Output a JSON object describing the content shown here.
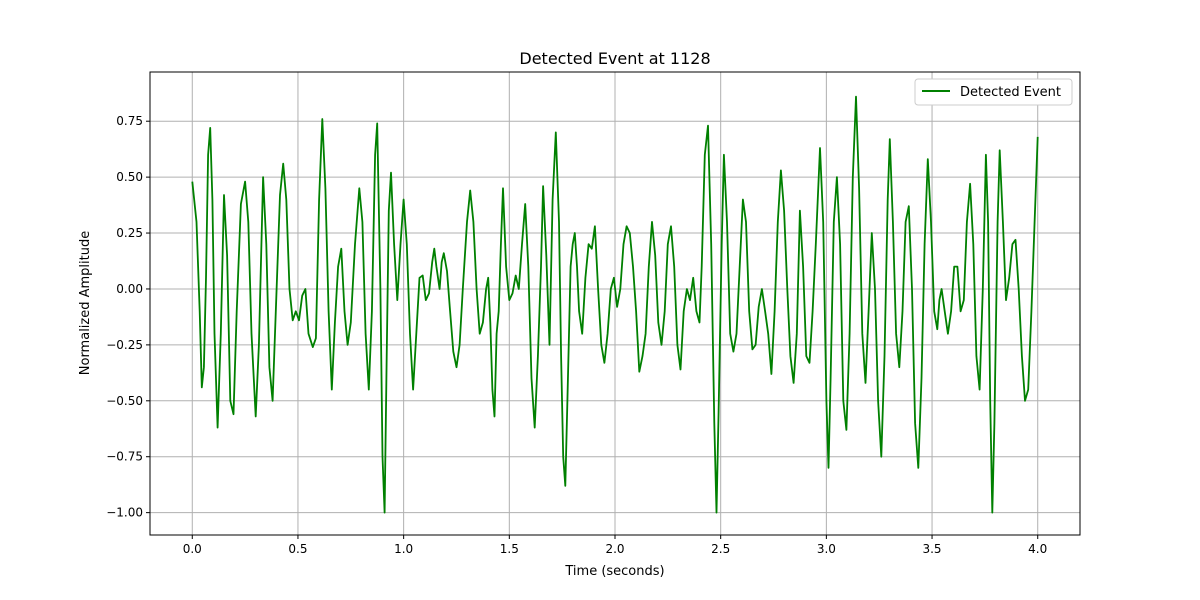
{
  "chart_data": {
    "type": "line",
    "title": "Detected Event at 1128",
    "xlabel": "Time (seconds)",
    "ylabel": "Normalized Amplitude",
    "xlim": [
      -0.2,
      4.2
    ],
    "ylim": [
      -1.1,
      0.97
    ],
    "x_ticks": [
      0.0,
      0.5,
      1.0,
      1.5,
      2.0,
      2.5,
      3.0,
      3.5,
      4.0
    ],
    "x_tick_labels": [
      "0.0",
      "0.5",
      "1.0",
      "1.5",
      "2.0",
      "2.5",
      "3.0",
      "3.5",
      "4.0"
    ],
    "y_ticks": [
      -1.0,
      -0.75,
      -0.5,
      -0.25,
      0.0,
      0.25,
      0.5,
      0.75
    ],
    "y_tick_labels": [
      "−1.00",
      "−0.75",
      "−0.50",
      "−0.25",
      "0.00",
      "0.25",
      "0.50",
      "0.75"
    ],
    "grid": true,
    "legend_position": "top-right",
    "series": [
      {
        "name": "Detected Event",
        "color": "#008000",
        "points": [
          [
            0.0,
            0.48
          ],
          [
            0.02,
            0.3
          ],
          [
            0.035,
            -0.1
          ],
          [
            0.045,
            -0.44
          ],
          [
            0.055,
            -0.35
          ],
          [
            0.065,
            0.05
          ],
          [
            0.075,
            0.6
          ],
          [
            0.085,
            0.72
          ],
          [
            0.095,
            0.4
          ],
          [
            0.105,
            -0.2
          ],
          [
            0.12,
            -0.62
          ],
          [
            0.135,
            -0.2
          ],
          [
            0.15,
            0.42
          ],
          [
            0.165,
            0.15
          ],
          [
            0.18,
            -0.5
          ],
          [
            0.195,
            -0.56
          ],
          [
            0.21,
            -0.1
          ],
          [
            0.23,
            0.38
          ],
          [
            0.25,
            0.48
          ],
          [
            0.265,
            0.3
          ],
          [
            0.28,
            -0.2
          ],
          [
            0.3,
            -0.57
          ],
          [
            0.315,
            -0.25
          ],
          [
            0.335,
            0.5
          ],
          [
            0.35,
            0.2
          ],
          [
            0.365,
            -0.35
          ],
          [
            0.38,
            -0.5
          ],
          [
            0.395,
            -0.1
          ],
          [
            0.415,
            0.42
          ],
          [
            0.43,
            0.56
          ],
          [
            0.445,
            0.4
          ],
          [
            0.46,
            0.0
          ],
          [
            0.475,
            -0.14
          ],
          [
            0.49,
            -0.1
          ],
          [
            0.505,
            -0.14
          ],
          [
            0.52,
            -0.03
          ],
          [
            0.535,
            0.0
          ],
          [
            0.55,
            -0.2
          ],
          [
            0.57,
            -0.26
          ],
          [
            0.585,
            -0.22
          ],
          [
            0.6,
            0.4
          ],
          [
            0.615,
            0.76
          ],
          [
            0.63,
            0.45
          ],
          [
            0.645,
            -0.1
          ],
          [
            0.66,
            -0.45
          ],
          [
            0.675,
            -0.15
          ],
          [
            0.69,
            0.1
          ],
          [
            0.705,
            0.18
          ],
          [
            0.72,
            -0.1
          ],
          [
            0.735,
            -0.25
          ],
          [
            0.75,
            -0.15
          ],
          [
            0.77,
            0.2
          ],
          [
            0.79,
            0.45
          ],
          [
            0.805,
            0.3
          ],
          [
            0.82,
            -0.2
          ],
          [
            0.835,
            -0.45
          ],
          [
            0.85,
            -0.1
          ],
          [
            0.865,
            0.6
          ],
          [
            0.875,
            0.74
          ],
          [
            0.89,
            0.0
          ],
          [
            0.9,
            -0.75
          ],
          [
            0.91,
            -1.0
          ],
          [
            0.92,
            -0.3
          ],
          [
            0.93,
            0.35
          ],
          [
            0.94,
            0.52
          ],
          [
            0.955,
            0.2
          ],
          [
            0.97,
            -0.05
          ],
          [
            0.985,
            0.2
          ],
          [
            1.0,
            0.4
          ],
          [
            1.015,
            0.2
          ],
          [
            1.03,
            -0.2
          ],
          [
            1.045,
            -0.45
          ],
          [
            1.06,
            -0.2
          ],
          [
            1.075,
            0.05
          ],
          [
            1.09,
            0.06
          ],
          [
            1.105,
            -0.05
          ],
          [
            1.12,
            -0.02
          ],
          [
            1.135,
            0.12
          ],
          [
            1.145,
            0.18
          ],
          [
            1.155,
            0.1
          ],
          [
            1.17,
            0.0
          ],
          [
            1.18,
            0.12
          ],
          [
            1.19,
            0.16
          ],
          [
            1.205,
            0.08
          ],
          [
            1.22,
            -0.1
          ],
          [
            1.235,
            -0.28
          ],
          [
            1.25,
            -0.35
          ],
          [
            1.265,
            -0.25
          ],
          [
            1.28,
            0.0
          ],
          [
            1.3,
            0.3
          ],
          [
            1.315,
            0.44
          ],
          [
            1.33,
            0.3
          ],
          [
            1.345,
            0.0
          ],
          [
            1.36,
            -0.2
          ],
          [
            1.375,
            -0.15
          ],
          [
            1.39,
            0.0
          ],
          [
            1.4,
            0.05
          ],
          [
            1.41,
            -0.15
          ],
          [
            1.42,
            -0.45
          ],
          [
            1.43,
            -0.57
          ],
          [
            1.44,
            -0.2
          ],
          [
            1.45,
            -0.1
          ],
          [
            1.46,
            0.2
          ],
          [
            1.47,
            0.45
          ],
          [
            1.485,
            0.1
          ],
          [
            1.5,
            -0.05
          ],
          [
            1.515,
            -0.02
          ],
          [
            1.53,
            0.06
          ],
          [
            1.545,
            0.0
          ],
          [
            1.56,
            0.2
          ],
          [
            1.575,
            0.38
          ],
          [
            1.59,
            0.1
          ],
          [
            1.605,
            -0.4
          ],
          [
            1.62,
            -0.62
          ],
          [
            1.635,
            -0.3
          ],
          [
            1.65,
            0.1
          ],
          [
            1.66,
            0.46
          ],
          [
            1.675,
            0.15
          ],
          [
            1.69,
            -0.25
          ],
          [
            1.705,
            0.4
          ],
          [
            1.72,
            0.7
          ],
          [
            1.735,
            0.3
          ],
          [
            1.745,
            -0.3
          ],
          [
            1.755,
            -0.75
          ],
          [
            1.765,
            -0.88
          ],
          [
            1.775,
            -0.5
          ],
          [
            1.79,
            0.1
          ],
          [
            1.8,
            0.2
          ],
          [
            1.81,
            0.25
          ],
          [
            1.82,
            0.1
          ],
          [
            1.83,
            -0.1
          ],
          [
            1.845,
            -0.2
          ],
          [
            1.86,
            0.05
          ],
          [
            1.875,
            0.2
          ],
          [
            1.89,
            0.18
          ],
          [
            1.905,
            0.28
          ],
          [
            1.92,
            0.0
          ],
          [
            1.935,
            -0.25
          ],
          [
            1.95,
            -0.33
          ],
          [
            1.965,
            -0.2
          ],
          [
            1.98,
            0.0
          ],
          [
            1.995,
            0.05
          ],
          [
            2.01,
            -0.08
          ],
          [
            2.025,
            0.0
          ],
          [
            2.04,
            0.2
          ],
          [
            2.055,
            0.28
          ],
          [
            2.07,
            0.25
          ],
          [
            2.085,
            0.1
          ],
          [
            2.1,
            -0.1
          ],
          [
            2.115,
            -0.37
          ],
          [
            2.13,
            -0.3
          ],
          [
            2.145,
            -0.2
          ],
          [
            2.16,
            0.1
          ],
          [
            2.175,
            0.3
          ],
          [
            2.19,
            0.15
          ],
          [
            2.205,
            -0.15
          ],
          [
            2.22,
            -0.25
          ],
          [
            2.235,
            -0.1
          ],
          [
            2.25,
            0.2
          ],
          [
            2.265,
            0.28
          ],
          [
            2.28,
            0.1
          ],
          [
            2.295,
            -0.25
          ],
          [
            2.31,
            -0.36
          ],
          [
            2.325,
            -0.1
          ],
          [
            2.34,
            0.0
          ],
          [
            2.355,
            -0.05
          ],
          [
            2.37,
            0.05
          ],
          [
            2.385,
            -0.1
          ],
          [
            2.4,
            -0.15
          ],
          [
            2.41,
            0.1
          ],
          [
            2.425,
            0.6
          ],
          [
            2.44,
            0.73
          ],
          [
            2.455,
            0.2
          ],
          [
            2.47,
            -0.6
          ],
          [
            2.48,
            -1.0
          ],
          [
            2.49,
            -0.55
          ],
          [
            2.505,
            0.2
          ],
          [
            2.515,
            0.6
          ],
          [
            2.53,
            0.3
          ],
          [
            2.545,
            -0.2
          ],
          [
            2.56,
            -0.28
          ],
          [
            2.575,
            -0.2
          ],
          [
            2.59,
            0.1
          ],
          [
            2.605,
            0.4
          ],
          [
            2.62,
            0.3
          ],
          [
            2.635,
            -0.1
          ],
          [
            2.65,
            -0.27
          ],
          [
            2.665,
            -0.25
          ],
          [
            2.68,
            -0.08
          ],
          [
            2.695,
            0.0
          ],
          [
            2.71,
            -0.1
          ],
          [
            2.725,
            -0.2
          ],
          [
            2.74,
            -0.38
          ],
          [
            2.755,
            -0.1
          ],
          [
            2.77,
            0.3
          ],
          [
            2.785,
            0.53
          ],
          [
            2.8,
            0.35
          ],
          [
            2.815,
            0.0
          ],
          [
            2.83,
            -0.3
          ],
          [
            2.845,
            -0.42
          ],
          [
            2.86,
            -0.2
          ],
          [
            2.875,
            0.35
          ],
          [
            2.89,
            0.1
          ],
          [
            2.905,
            -0.3
          ],
          [
            2.92,
            -0.33
          ],
          [
            2.935,
            -0.1
          ],
          [
            2.95,
            0.2
          ],
          [
            2.97,
            0.63
          ],
          [
            2.985,
            0.3
          ],
          [
            3.0,
            -0.5
          ],
          [
            3.01,
            -0.8
          ],
          [
            3.02,
            -0.4
          ],
          [
            3.035,
            0.3
          ],
          [
            3.05,
            0.5
          ],
          [
            3.065,
            0.2
          ],
          [
            3.08,
            -0.5
          ],
          [
            3.095,
            -0.63
          ],
          [
            3.11,
            -0.2
          ],
          [
            3.125,
            0.5
          ],
          [
            3.14,
            0.86
          ],
          [
            3.155,
            0.45
          ],
          [
            3.17,
            -0.2
          ],
          [
            3.185,
            -0.42
          ],
          [
            3.2,
            -0.1
          ],
          [
            3.215,
            0.25
          ],
          [
            3.23,
            0.0
          ],
          [
            3.245,
            -0.5
          ],
          [
            3.26,
            -0.75
          ],
          [
            3.275,
            -0.3
          ],
          [
            3.29,
            0.4
          ],
          [
            3.3,
            0.67
          ],
          [
            3.315,
            0.3
          ],
          [
            3.33,
            -0.2
          ],
          [
            3.345,
            -0.35
          ],
          [
            3.36,
            -0.1
          ],
          [
            3.375,
            0.3
          ],
          [
            3.39,
            0.37
          ],
          [
            3.405,
            0.0
          ],
          [
            3.42,
            -0.6
          ],
          [
            3.435,
            -0.8
          ],
          [
            3.45,
            -0.4
          ],
          [
            3.465,
            0.2
          ],
          [
            3.48,
            0.58
          ],
          [
            3.495,
            0.3
          ],
          [
            3.51,
            -0.1
          ],
          [
            3.525,
            -0.18
          ],
          [
            3.535,
            -0.05
          ],
          [
            3.545,
            0.0
          ],
          [
            3.56,
            -0.1
          ],
          [
            3.575,
            -0.2
          ],
          [
            3.59,
            -0.1
          ],
          [
            3.605,
            0.1
          ],
          [
            3.62,
            0.1
          ],
          [
            3.635,
            -0.1
          ],
          [
            3.65,
            -0.05
          ],
          [
            3.665,
            0.3
          ],
          [
            3.68,
            0.47
          ],
          [
            3.695,
            0.2
          ],
          [
            3.71,
            -0.3
          ],
          [
            3.725,
            -0.45
          ],
          [
            3.74,
            0.0
          ],
          [
            3.755,
            0.6
          ],
          [
            3.765,
            0.3
          ],
          [
            3.775,
            -0.5
          ],
          [
            3.785,
            -1.0
          ],
          [
            3.795,
            -0.6
          ],
          [
            3.81,
            0.3
          ],
          [
            3.82,
            0.62
          ],
          [
            3.835,
            0.3
          ],
          [
            3.85,
            -0.05
          ],
          [
            3.865,
            0.05
          ],
          [
            3.88,
            0.2
          ],
          [
            3.895,
            0.22
          ],
          [
            3.91,
            0.0
          ],
          [
            3.925,
            -0.3
          ],
          [
            3.94,
            -0.5
          ],
          [
            3.955,
            -0.45
          ],
          [
            3.97,
            -0.1
          ],
          [
            3.985,
            0.3
          ],
          [
            4.0,
            0.68
          ]
        ]
      }
    ]
  }
}
